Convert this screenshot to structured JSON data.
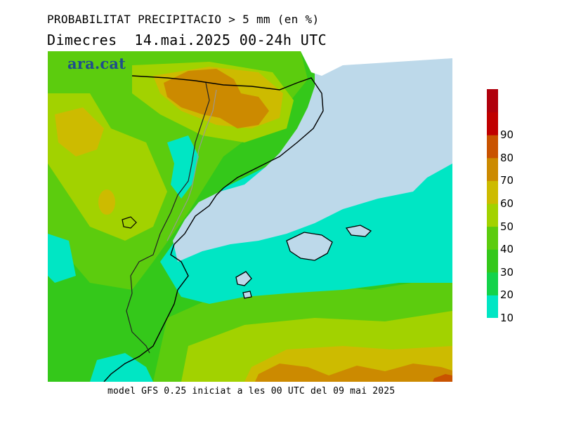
{
  "title_line1": "PROBABILITAT PRECIPITACIO > 5 mm (en %)",
  "title_line2": "Dimecres  14.mai.2025 00-24h UTC",
  "logo_text": "ara.cat",
  "footer": "model GFS 0.25 iniciat a les 00 UTC del 09 mai 2025",
  "legend": {
    "labels": [
      "10",
      "20",
      "30",
      "40",
      "50",
      "60",
      "70",
      "80",
      "90"
    ],
    "colors": [
      "#00e6c4",
      "#13d34a",
      "#34c81a",
      "#5ccc0e",
      "#a2d200",
      "#cdbb00",
      "#cc8a00",
      "#c95300",
      "#c00000",
      "#b0000c"
    ]
  },
  "colors": {
    "sea": "#bdd9ea",
    "coast_line": "#000000",
    "border_line": "#999999"
  }
}
